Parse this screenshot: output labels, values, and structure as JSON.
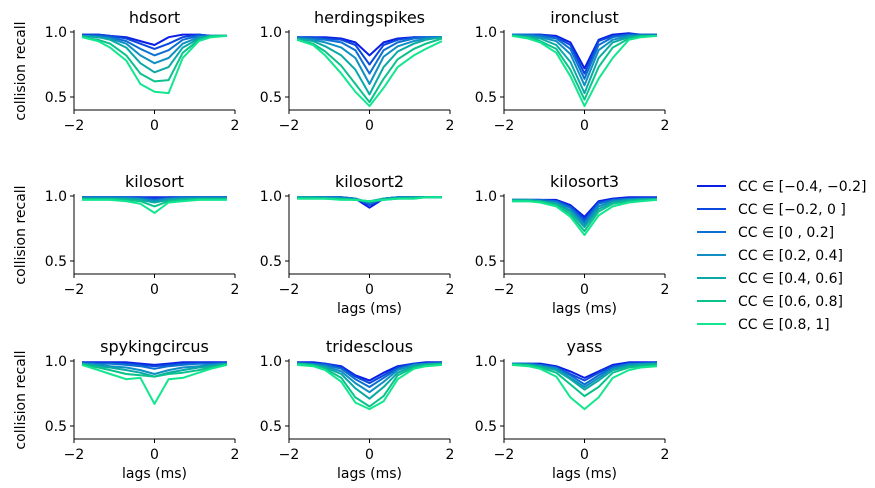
{
  "chart_data": {
    "type": "line",
    "ylabel": "collision recall",
    "xlabel": "lags (ms)",
    "xlim": [
      -2,
      2
    ],
    "ylim": [
      0.4,
      1.0
    ],
    "xticks": [
      "−2",
      "0",
      "2"
    ],
    "yticks": [
      "0.5",
      "1.0"
    ],
    "grid": false,
    "legend_position": "right",
    "x": [
      -1.8,
      -1.4,
      -1.1,
      -0.7,
      -0.35,
      0,
      0.35,
      0.7,
      1.1,
      1.4,
      1.8
    ],
    "series": [
      {
        "name": "CC ∈ [−0.4, −0.2]",
        "color": "#0a1ee6"
      },
      {
        "name": "CC ∈ [−0.2, 0 ]",
        "color": "#0c47de"
      },
      {
        "name": "CC ∈ [0 , 0.2]",
        "color": "#0c6fd2"
      },
      {
        "name": "CC ∈ [0.2, 0.4]",
        "color": "#0f8fc2"
      },
      {
        "name": "CC ∈ [0.4, 0.6]",
        "color": "#0aa9a6"
      },
      {
        "name": "CC ∈ [0.6, 0.8]",
        "color": "#0cc28c"
      },
      {
        "name": "CC ∈ [0.8, 1]",
        "color": "#12e68e"
      }
    ],
    "panels": [
      {
        "title": "hdsort",
        "show_xlabel": false,
        "values": [
          [
            0.98,
            0.98,
            0.97,
            0.96,
            0.93,
            0.9,
            0.96,
            0.98,
            0.98,
            0.97,
            0.97
          ],
          [
            0.98,
            0.98,
            0.97,
            0.95,
            0.91,
            0.87,
            0.91,
            0.96,
            0.98,
            0.97,
            0.97
          ],
          [
            0.97,
            0.97,
            0.96,
            0.93,
            0.87,
            0.82,
            0.86,
            0.94,
            0.97,
            0.97,
            0.97
          ],
          [
            0.97,
            0.96,
            0.95,
            0.91,
            0.82,
            0.76,
            0.8,
            0.91,
            0.96,
            0.97,
            0.97
          ],
          [
            0.97,
            0.96,
            0.94,
            0.88,
            0.76,
            0.69,
            0.73,
            0.88,
            0.95,
            0.97,
            0.97
          ],
          [
            0.96,
            0.94,
            0.91,
            0.82,
            0.68,
            0.62,
            0.63,
            0.84,
            0.94,
            0.97,
            0.97
          ],
          [
            0.96,
            0.93,
            0.88,
            0.78,
            0.6,
            0.54,
            0.53,
            0.8,
            0.93,
            0.96,
            0.97
          ]
        ]
      },
      {
        "title": "herdingspikes",
        "show_xlabel": false,
        "values": [
          [
            0.96,
            0.96,
            0.96,
            0.95,
            0.92,
            0.82,
            0.92,
            0.95,
            0.96,
            0.96,
            0.96
          ],
          [
            0.96,
            0.96,
            0.95,
            0.94,
            0.9,
            0.75,
            0.9,
            0.94,
            0.96,
            0.96,
            0.96
          ],
          [
            0.96,
            0.95,
            0.94,
            0.92,
            0.86,
            0.68,
            0.86,
            0.92,
            0.95,
            0.96,
            0.96
          ],
          [
            0.95,
            0.94,
            0.92,
            0.88,
            0.8,
            0.6,
            0.81,
            0.89,
            0.93,
            0.95,
            0.96
          ],
          [
            0.95,
            0.93,
            0.89,
            0.82,
            0.71,
            0.52,
            0.73,
            0.85,
            0.91,
            0.94,
            0.96
          ],
          [
            0.94,
            0.91,
            0.85,
            0.74,
            0.6,
            0.46,
            0.64,
            0.79,
            0.87,
            0.91,
            0.95
          ],
          [
            0.94,
            0.9,
            0.82,
            0.68,
            0.54,
            0.43,
            0.57,
            0.73,
            0.82,
            0.87,
            0.93
          ]
        ]
      },
      {
        "title": "ironclust",
        "show_xlabel": false,
        "values": [
          [
            0.98,
            0.98,
            0.98,
            0.97,
            0.92,
            0.72,
            0.94,
            0.98,
            0.99,
            0.98,
            0.98
          ],
          [
            0.98,
            0.98,
            0.98,
            0.96,
            0.9,
            0.68,
            0.93,
            0.97,
            0.98,
            0.98,
            0.98
          ],
          [
            0.98,
            0.98,
            0.97,
            0.95,
            0.87,
            0.64,
            0.9,
            0.96,
            0.98,
            0.98,
            0.98
          ],
          [
            0.98,
            0.97,
            0.96,
            0.93,
            0.83,
            0.59,
            0.86,
            0.94,
            0.97,
            0.97,
            0.97
          ],
          [
            0.97,
            0.96,
            0.95,
            0.9,
            0.77,
            0.53,
            0.8,
            0.92,
            0.96,
            0.97,
            0.97
          ],
          [
            0.97,
            0.96,
            0.93,
            0.87,
            0.71,
            0.48,
            0.73,
            0.88,
            0.95,
            0.97,
            0.97
          ],
          [
            0.97,
            0.95,
            0.92,
            0.84,
            0.66,
            0.43,
            0.64,
            0.8,
            0.94,
            0.96,
            0.97
          ]
        ]
      },
      {
        "title": "kilosort",
        "show_xlabel": false,
        "values": [
          [
            0.99,
            0.99,
            0.99,
            0.99,
            0.99,
            0.99,
            0.99,
            0.99,
            0.99,
            0.99,
            0.99
          ],
          [
            0.99,
            0.99,
            0.99,
            0.99,
            0.99,
            0.98,
            0.99,
            0.99,
            0.99,
            0.99,
            0.99
          ],
          [
            0.99,
            0.99,
            0.99,
            0.99,
            0.98,
            0.97,
            0.98,
            0.99,
            0.99,
            0.99,
            0.99
          ],
          [
            0.98,
            0.98,
            0.98,
            0.98,
            0.98,
            0.96,
            0.98,
            0.98,
            0.98,
            0.98,
            0.98
          ],
          [
            0.98,
            0.98,
            0.98,
            0.98,
            0.97,
            0.95,
            0.97,
            0.98,
            0.98,
            0.98,
            0.98
          ],
          [
            0.98,
            0.98,
            0.98,
            0.97,
            0.96,
            0.92,
            0.96,
            0.97,
            0.98,
            0.98,
            0.98
          ],
          [
            0.97,
            0.97,
            0.97,
            0.96,
            0.94,
            0.87,
            0.95,
            0.96,
            0.97,
            0.97,
            0.97
          ]
        ]
      },
      {
        "title": "kilosort2",
        "show_xlabel": true,
        "values": [
          [
            0.99,
            0.99,
            0.99,
            0.99,
            0.98,
            0.91,
            0.98,
            0.99,
            0.99,
            0.99,
            0.99
          ],
          [
            0.99,
            0.99,
            0.99,
            0.99,
            0.98,
            0.93,
            0.98,
            0.99,
            0.99,
            0.99,
            0.99
          ],
          [
            0.99,
            0.99,
            0.99,
            0.99,
            0.98,
            0.94,
            0.98,
            0.99,
            0.99,
            0.99,
            0.99
          ],
          [
            0.99,
            0.99,
            0.99,
            0.98,
            0.98,
            0.95,
            0.98,
            0.99,
            0.99,
            0.99,
            0.99
          ],
          [
            0.99,
            0.99,
            0.98,
            0.98,
            0.97,
            0.96,
            0.98,
            0.98,
            0.99,
            0.99,
            0.99
          ],
          [
            0.98,
            0.98,
            0.98,
            0.98,
            0.97,
            0.96,
            0.97,
            0.98,
            0.98,
            0.99,
            0.99
          ],
          [
            0.98,
            0.98,
            0.98,
            0.97,
            0.97,
            0.96,
            0.97,
            0.98,
            0.98,
            0.99,
            0.99
          ]
        ]
      },
      {
        "title": "kilosort3",
        "show_xlabel": true,
        "values": [
          [
            0.97,
            0.97,
            0.97,
            0.97,
            0.93,
            0.84,
            0.96,
            0.98,
            0.99,
            0.99,
            0.99
          ],
          [
            0.97,
            0.97,
            0.97,
            0.96,
            0.92,
            0.82,
            0.95,
            0.97,
            0.98,
            0.98,
            0.98
          ],
          [
            0.97,
            0.97,
            0.97,
            0.96,
            0.91,
            0.8,
            0.94,
            0.97,
            0.98,
            0.98,
            0.98
          ],
          [
            0.97,
            0.97,
            0.96,
            0.95,
            0.89,
            0.78,
            0.92,
            0.96,
            0.97,
            0.98,
            0.98
          ],
          [
            0.97,
            0.97,
            0.96,
            0.94,
            0.88,
            0.76,
            0.9,
            0.95,
            0.97,
            0.97,
            0.98
          ],
          [
            0.96,
            0.96,
            0.96,
            0.93,
            0.86,
            0.73,
            0.88,
            0.94,
            0.96,
            0.97,
            0.97
          ],
          [
            0.96,
            0.96,
            0.95,
            0.92,
            0.84,
            0.7,
            0.85,
            0.92,
            0.95,
            0.96,
            0.97
          ]
        ]
      },
      {
        "title": "spykingcircus",
        "show_xlabel": true,
        "values": [
          [
            0.99,
            0.99,
            0.99,
            0.99,
            0.98,
            0.97,
            0.98,
            0.99,
            0.99,
            0.99,
            0.99
          ],
          [
            0.99,
            0.98,
            0.98,
            0.98,
            0.97,
            0.96,
            0.97,
            0.98,
            0.98,
            0.98,
            0.99
          ],
          [
            0.98,
            0.98,
            0.98,
            0.97,
            0.96,
            0.94,
            0.96,
            0.97,
            0.98,
            0.98,
            0.98
          ],
          [
            0.98,
            0.97,
            0.96,
            0.95,
            0.93,
            0.9,
            0.93,
            0.95,
            0.96,
            0.97,
            0.98
          ],
          [
            0.98,
            0.96,
            0.95,
            0.93,
            0.91,
            0.88,
            0.91,
            0.93,
            0.95,
            0.96,
            0.98
          ],
          [
            0.97,
            0.95,
            0.93,
            0.9,
            0.89,
            0.88,
            0.9,
            0.91,
            0.93,
            0.95,
            0.97
          ],
          [
            0.97,
            0.93,
            0.9,
            0.86,
            0.87,
            0.67,
            0.86,
            0.87,
            0.91,
            0.94,
            0.97
          ]
        ]
      },
      {
        "title": "tridesclous",
        "show_xlabel": true,
        "values": [
          [
            0.99,
            0.99,
            0.98,
            0.96,
            0.89,
            0.85,
            0.91,
            0.96,
            0.98,
            0.99,
            0.99
          ],
          [
            0.99,
            0.98,
            0.98,
            0.95,
            0.88,
            0.83,
            0.89,
            0.95,
            0.98,
            0.98,
            0.99
          ],
          [
            0.98,
            0.98,
            0.97,
            0.94,
            0.86,
            0.8,
            0.87,
            0.94,
            0.97,
            0.98,
            0.98
          ],
          [
            0.98,
            0.97,
            0.96,
            0.92,
            0.83,
            0.76,
            0.84,
            0.93,
            0.97,
            0.98,
            0.98
          ],
          [
            0.98,
            0.97,
            0.95,
            0.9,
            0.79,
            0.71,
            0.8,
            0.91,
            0.96,
            0.97,
            0.98
          ],
          [
            0.98,
            0.97,
            0.94,
            0.87,
            0.72,
            0.65,
            0.73,
            0.89,
            0.95,
            0.97,
            0.98
          ],
          [
            0.97,
            0.96,
            0.93,
            0.84,
            0.68,
            0.63,
            0.69,
            0.86,
            0.94,
            0.96,
            0.97
          ]
        ]
      },
      {
        "title": "yass",
        "show_xlabel": true,
        "values": [
          [
            0.98,
            0.98,
            0.98,
            0.96,
            0.92,
            0.87,
            0.92,
            0.97,
            0.99,
            0.99,
            0.99
          ],
          [
            0.98,
            0.98,
            0.97,
            0.95,
            0.9,
            0.85,
            0.91,
            0.96,
            0.98,
            0.98,
            0.99
          ],
          [
            0.98,
            0.98,
            0.97,
            0.95,
            0.89,
            0.82,
            0.89,
            0.95,
            0.98,
            0.98,
            0.98
          ],
          [
            0.98,
            0.97,
            0.96,
            0.94,
            0.87,
            0.8,
            0.87,
            0.94,
            0.97,
            0.98,
            0.98
          ],
          [
            0.98,
            0.97,
            0.96,
            0.93,
            0.86,
            0.78,
            0.85,
            0.93,
            0.96,
            0.97,
            0.98
          ],
          [
            0.97,
            0.97,
            0.95,
            0.91,
            0.82,
            0.73,
            0.8,
            0.91,
            0.95,
            0.96,
            0.97
          ],
          [
            0.97,
            0.96,
            0.94,
            0.88,
            0.72,
            0.63,
            0.72,
            0.87,
            0.93,
            0.95,
            0.96
          ]
        ]
      }
    ]
  }
}
